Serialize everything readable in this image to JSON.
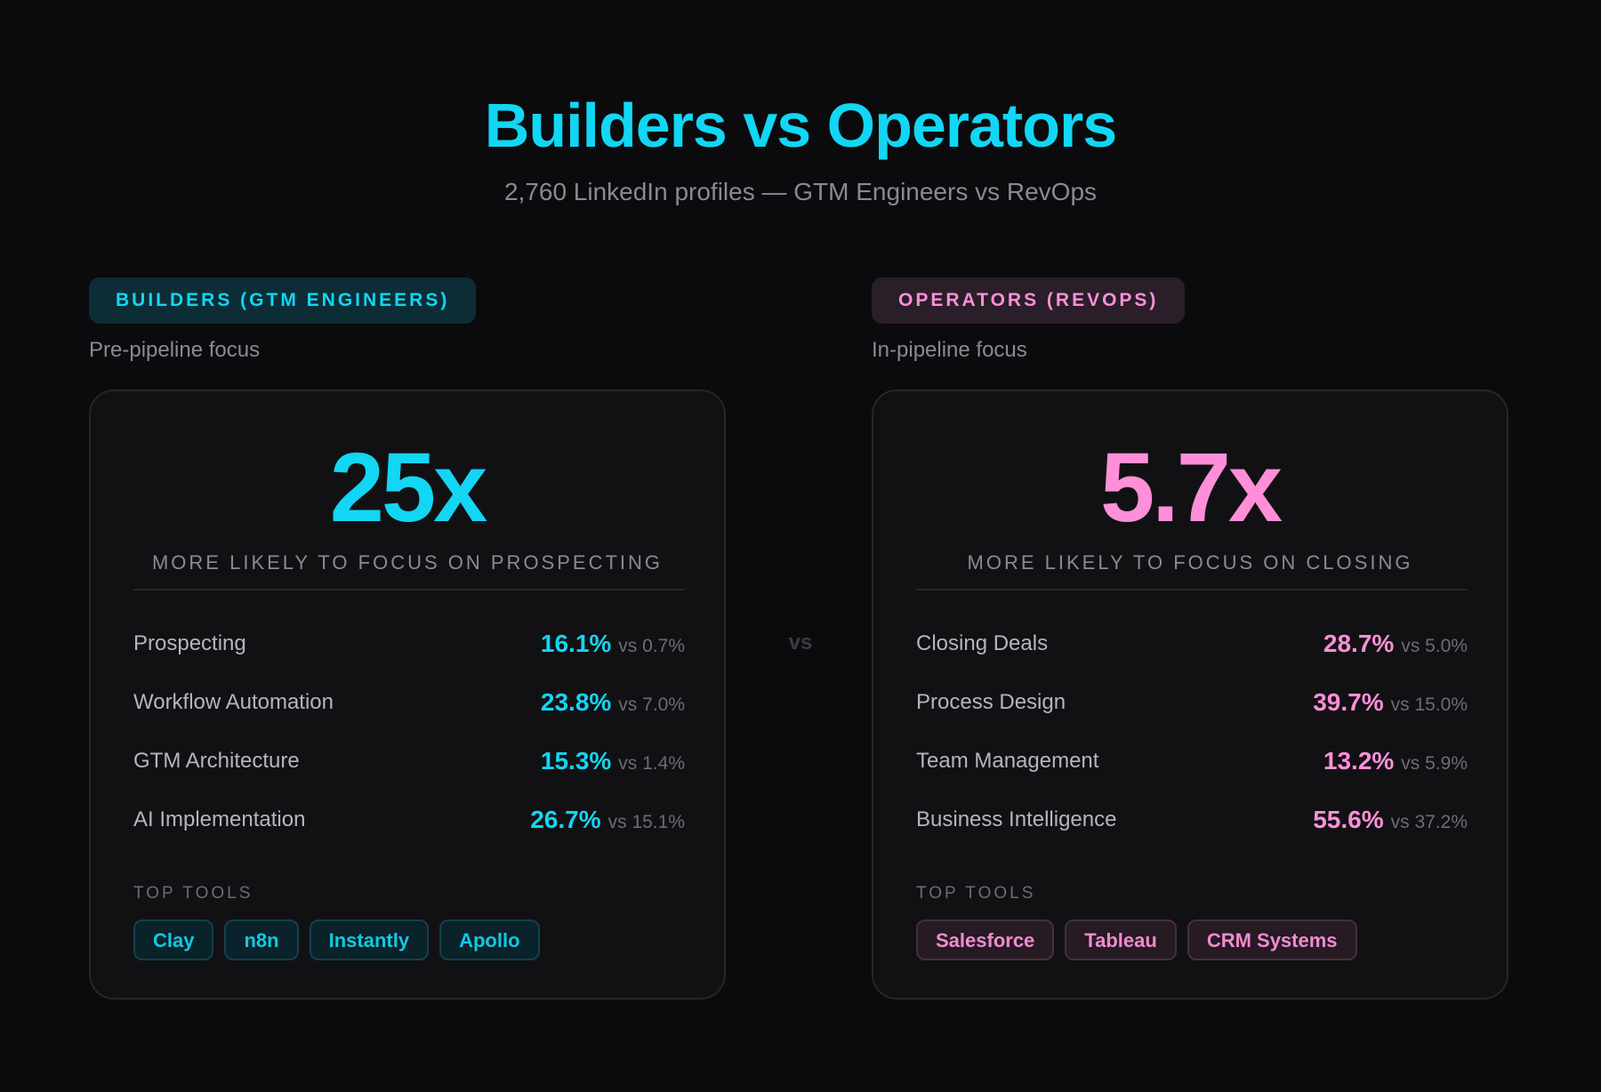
{
  "header": {
    "title": "Builders vs Operators",
    "subtitle": "2,760 LinkedIn profiles — GTM Engineers vs RevOps"
  },
  "vs_label": "vs",
  "colors": {
    "builders_accent": "#12d6f3",
    "operators_accent": "#ff8fd8",
    "background": "#0b0b0d"
  },
  "builders": {
    "pill": "BUILDERS (GTM ENGINEERS)",
    "focus": "Pre-pipeline focus",
    "multiplier": "25x",
    "multiplier_caption": "MORE LIKELY TO FOCUS ON PROSPECTING",
    "rows": [
      {
        "label": "Prospecting",
        "value": "16.1%",
        "compare": "vs 0.7%"
      },
      {
        "label": "Workflow Automation",
        "value": "23.8%",
        "compare": "vs 7.0%"
      },
      {
        "label": "GTM Architecture",
        "value": "15.3%",
        "compare": "vs 1.4%"
      },
      {
        "label": "AI Implementation",
        "value": "26.7%",
        "compare": "vs 15.1%"
      }
    ],
    "tools_label": "TOP TOOLS",
    "tools": [
      "Clay",
      "n8n",
      "Instantly",
      "Apollo"
    ]
  },
  "operators": {
    "pill": "OPERATORS (REVOPS)",
    "focus": "In-pipeline focus",
    "multiplier": "5.7x",
    "multiplier_caption": "MORE LIKELY TO FOCUS ON CLOSING",
    "rows": [
      {
        "label": "Closing Deals",
        "value": "28.7%",
        "compare": "vs 5.0%"
      },
      {
        "label": "Process Design",
        "value": "39.7%",
        "compare": "vs 15.0%"
      },
      {
        "label": "Team Management",
        "value": "13.2%",
        "compare": "vs 5.9%"
      },
      {
        "label": "Business Intelligence",
        "value": "55.6%",
        "compare": "vs 37.2%"
      }
    ],
    "tools_label": "TOP TOOLS",
    "tools": [
      "Salesforce",
      "Tableau",
      "CRM Systems"
    ]
  }
}
